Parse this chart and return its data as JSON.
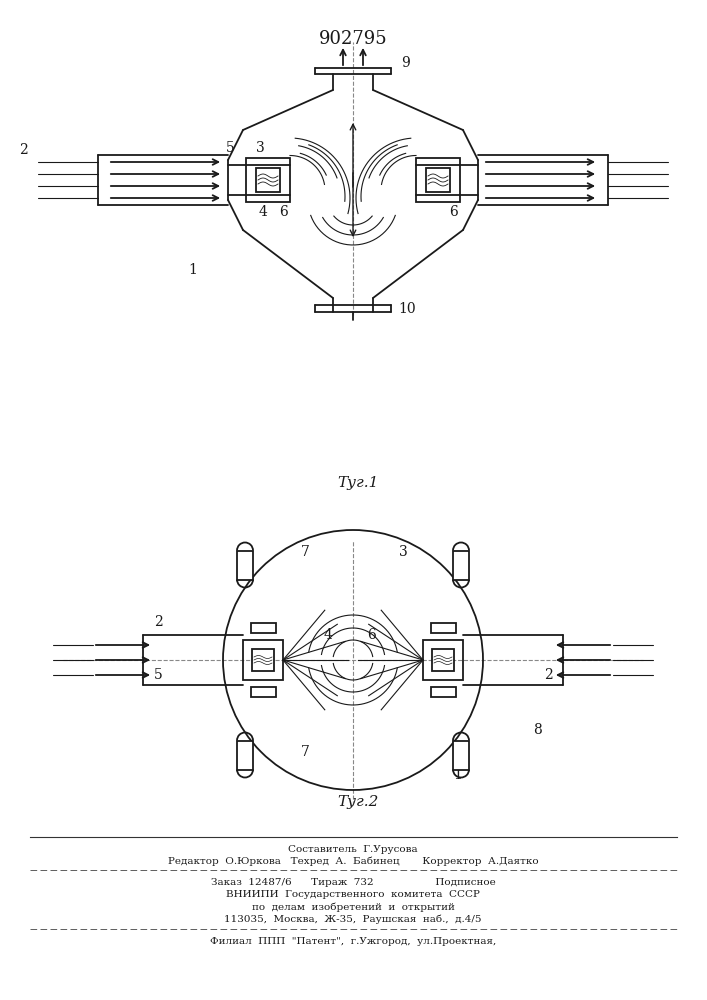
{
  "patent_number": "902795",
  "fig1_label": "Τуг.1",
  "fig2_label": "Τуг.2",
  "footer_line1": "Составитель  Г.Урусова",
  "footer_line2": "Редактор  О.Юркова   Техред  А.  Бабинец       Корректор  А.Даятко",
  "footer_line3": "Заказ  12487/6      Тираж  732                   Подписное",
  "footer_line4": "ВНИИПИ  Государственного  комитета  СССР",
  "footer_line5": "по  делам  изобретений  и  открытий",
  "footer_line6": "113035,  Москва,  Ж-35,  Раушская  наб.,  д.4/5",
  "footer_line7": "Филиал  ППП  \"Патент\",  г.Ужгород,  ул.Проектная,",
  "bg_color": "#ffffff",
  "line_color": "#1a1a1a"
}
